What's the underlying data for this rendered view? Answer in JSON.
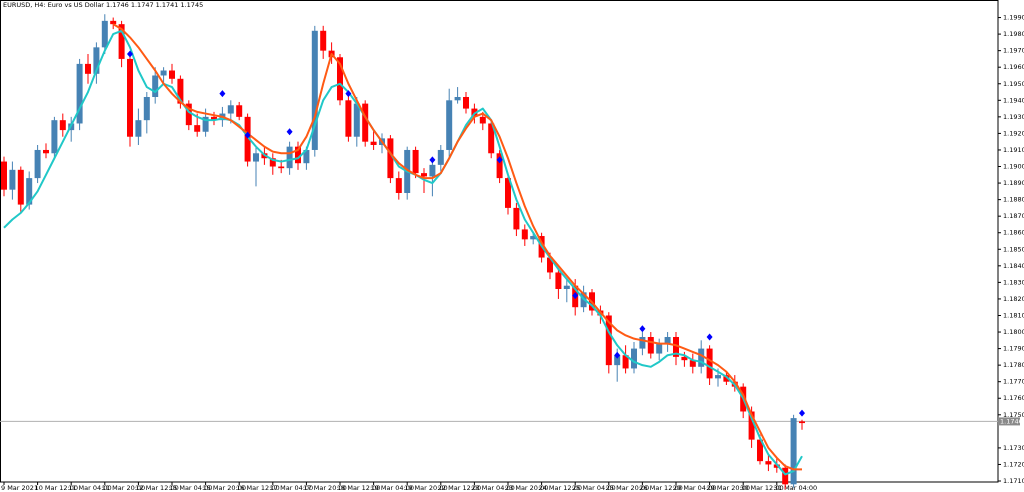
{
  "chart_data": {
    "type": "candlestick",
    "title": "EURUSD, H4:  Euro vs US Dollar  1.1746 1.1747 1.1741 1.1745",
    "categories": [
      "9 Mar 2021",
      null,
      null,
      null,
      "10 Mar 12:00",
      null,
      null,
      null,
      "11 Mar 04:00",
      null,
      null,
      null,
      "11 Mar 20:00",
      null,
      null,
      null,
      "12 Mar 12:00",
      null,
      null,
      null,
      "15 Mar 04:00",
      null,
      null,
      null,
      "15 Mar 20:00",
      null,
      null,
      null,
      "16 Mar 12:00",
      null,
      null,
      null,
      "17 Mar 04:00",
      null,
      null,
      null,
      "17 Mar 20:00",
      null,
      null,
      null,
      "18 Mar 12:00",
      null,
      null,
      null,
      "19 Mar 04:00",
      null,
      null,
      null,
      "19 Mar 20:00",
      null,
      null,
      null,
      "22 Mar 12:00",
      null,
      null,
      null,
      "23 Mar 04:00",
      null,
      null,
      null,
      "23 Mar 20:00",
      null,
      null,
      null,
      "24 Mar 12:00",
      null,
      null,
      null,
      "25 Mar 04:00",
      null,
      null,
      null,
      "25 Mar 20:00",
      null,
      null,
      null,
      "26 Mar 12:00",
      null,
      null,
      null,
      "29 Mar 04:00",
      null,
      null,
      null,
      "29 Mar 20:00",
      null,
      null,
      null,
      "30 Mar 12:00",
      null,
      null,
      null,
      "31 Mar 04:00",
      null,
      null,
      null
    ],
    "open": [
      1.1903,
      1.1886,
      1.1898,
      1.1877,
      1.1893,
      1.191,
      1.1908,
      1.1928,
      1.1922,
      1.1926,
      1.1962,
      1.1956,
      1.1972,
      1.1988,
      1.1986,
      1.1965,
      1.1918,
      1.1928,
      1.1942,
      1.1955,
      1.1958,
      1.1953,
      1.1938,
      1.1925,
      1.1921,
      1.193,
      1.1928,
      1.1932,
      1.1937,
      1.193,
      1.1903,
      1.1908,
      1.1905,
      1.19,
      1.1899,
      1.1912,
      1.1902,
      1.191,
      1.1982,
      1.197,
      1.1966,
      1.194,
      1.1918,
      1.1938,
      1.1915,
      1.1913,
      1.1917,
      1.1893,
      1.1884,
      1.191,
      1.1896,
      1.1894,
      1.1901,
      1.191,
      1.194,
      1.1942,
      1.1935,
      1.193,
      1.1926,
      1.1908,
      1.1893,
      1.1875,
      1.1862,
      1.1856,
      1.1858,
      1.1845,
      1.1836,
      1.1826,
      1.1828,
      1.1815,
      1.1824,
      1.1813,
      1.181,
      1.178,
      1.1786,
      1.1778,
      1.179,
      1.1797,
      1.1787,
      1.1793,
      1.1797,
      1.1785,
      1.1783,
      1.1779,
      1.179,
      1.1772,
      1.1774,
      1.177,
      1.1767,
      1.1752,
      1.1735,
      1.1722,
      1.172,
      1.1718,
      1.1708,
      1.1746
    ],
    "high": [
      1.1906,
      1.1903,
      1.19,
      1.1897,
      1.1913,
      1.1914,
      1.193,
      1.1932,
      1.193,
      1.1965,
      1.1968,
      1.1975,
      1.1992,
      1.199,
      1.1988,
      1.1968,
      1.1935,
      1.1945,
      1.196,
      1.196,
      1.1962,
      1.1955,
      1.194,
      1.1932,
      1.1935,
      1.1933,
      1.1936,
      1.194,
      1.1939,
      1.1932,
      1.1912,
      1.1912,
      1.1908,
      1.1904,
      1.1915,
      1.1915,
      1.1912,
      1.1985,
      1.1985,
      1.1975,
      1.1968,
      1.1943,
      1.1942,
      1.194,
      1.1922,
      1.192,
      1.1919,
      1.1897,
      1.1912,
      1.1912,
      1.1899,
      1.1904,
      1.1913,
      1.1947,
      1.1948,
      1.1945,
      1.1938,
      1.1933,
      1.1928,
      1.191,
      1.1895,
      1.1878,
      1.1865,
      1.186,
      1.186,
      1.1848,
      1.1838,
      1.1832,
      1.1832,
      1.1828,
      1.1826,
      1.1816,
      1.1812,
      1.179,
      1.1792,
      1.1794,
      1.18,
      1.18,
      1.1796,
      1.18,
      1.18,
      1.1788,
      1.1787,
      1.1795,
      1.1792,
      1.1778,
      1.1776,
      1.1774,
      1.1769,
      1.1755,
      1.1738,
      1.1726,
      1.1724,
      1.172,
      1.175,
      1.1747
    ],
    "low": [
      1.1882,
      1.188,
      1.1872,
      1.1874,
      1.189,
      1.1905,
      1.1905,
      1.1918,
      1.1915,
      1.1922,
      1.195,
      1.195,
      1.1968,
      1.1983,
      1.196,
      1.1912,
      1.1913,
      1.192,
      1.1938,
      1.195,
      1.195,
      1.1935,
      1.1922,
      1.1918,
      1.1918,
      1.1925,
      1.1924,
      1.1926,
      1.1928,
      1.19,
      1.1888,
      1.1901,
      1.1895,
      1.1896,
      1.1895,
      1.1898,
      1.1898,
      1.1906,
      1.1965,
      1.1962,
      1.1937,
      1.1915,
      1.1912,
      1.1912,
      1.191,
      1.1908,
      1.189,
      1.188,
      1.188,
      1.1893,
      1.1884,
      1.1882,
      1.1897,
      1.1906,
      1.1938,
      1.1932,
      1.1926,
      1.1922,
      1.1905,
      1.189,
      1.1871,
      1.1858,
      1.1852,
      1.1853,
      1.1842,
      1.1832,
      1.182,
      1.1818,
      1.181,
      1.1812,
      1.181,
      1.1805,
      1.1775,
      1.177,
      1.1775,
      1.1775,
      1.1786,
      1.1784,
      1.1783,
      1.1788,
      1.178,
      1.1779,
      1.1775,
      1.1775,
      1.1768,
      1.1767,
      1.1768,
      1.1764,
      1.1748,
      1.173,
      1.172,
      1.1716,
      1.1715,
      1.1705,
      1.1706,
      1.1741
    ],
    "close": [
      1.1886,
      1.1898,
      1.1877,
      1.1893,
      1.191,
      1.1908,
      1.1928,
      1.1922,
      1.1926,
      1.1962,
      1.1956,
      1.1972,
      1.1988,
      1.1986,
      1.1965,
      1.1918,
      1.1928,
      1.1942,
      1.1955,
      1.1958,
      1.1953,
      1.1938,
      1.1925,
      1.1921,
      1.193,
      1.1928,
      1.1932,
      1.1937,
      1.193,
      1.1903,
      1.1908,
      1.1905,
      1.19,
      1.1899,
      1.1912,
      1.1902,
      1.191,
      1.1982,
      1.197,
      1.1966,
      1.194,
      1.1918,
      1.1938,
      1.1915,
      1.1913,
      1.1917,
      1.1893,
      1.1884,
      1.191,
      1.1896,
      1.1894,
      1.1901,
      1.191,
      1.194,
      1.1942,
      1.1935,
      1.193,
      1.1926,
      1.1908,
      1.1893,
      1.1875,
      1.1862,
      1.1856,
      1.1858,
      1.1845,
      1.1836,
      1.1826,
      1.1828,
      1.1815,
      1.1824,
      1.1813,
      1.181,
      1.178,
      1.1786,
      1.1778,
      1.179,
      1.1797,
      1.1787,
      1.1793,
      1.1797,
      1.1785,
      1.1783,
      1.1779,
      1.179,
      1.1772,
      1.1774,
      1.177,
      1.1767,
      1.1752,
      1.1735,
      1.1722,
      1.172,
      1.1718,
      1.1708,
      1.1748,
      1.1745
    ],
    "up_color": "#4682b4",
    "down_color": "#ff0000",
    "ma_fast": {
      "color": "#20c8c8",
      "values": [
        1.1863,
        1.1868,
        1.1872,
        1.1878,
        1.1885,
        1.1895,
        1.1905,
        1.1915,
        1.1925,
        1.1935,
        1.1945,
        1.1958,
        1.197,
        1.198,
        1.1982,
        1.1972,
        1.1958,
        1.1948,
        1.1945,
        1.195,
        1.1948,
        1.194,
        1.1933,
        1.193,
        1.1928,
        1.1928,
        1.1929,
        1.1928,
        1.1925,
        1.1918,
        1.1912,
        1.1907,
        1.1904,
        1.1903,
        1.1904,
        1.1905,
        1.191,
        1.1925,
        1.194,
        1.1948,
        1.195,
        1.1945,
        1.1938,
        1.193,
        1.1922,
        1.1915,
        1.1908,
        1.19,
        1.1897,
        1.1895,
        1.1892,
        1.189,
        1.1896,
        1.1905,
        1.1915,
        1.1925,
        1.1932,
        1.1935,
        1.1928,
        1.1912,
        1.1895,
        1.188,
        1.1868,
        1.186,
        1.1852,
        1.1845,
        1.1838,
        1.1832,
        1.1826,
        1.182,
        1.1816,
        1.181,
        1.18,
        1.1792,
        1.1786,
        1.1782,
        1.178,
        1.1779,
        1.1782,
        1.1786,
        1.1787,
        1.1786,
        1.1783,
        1.1782,
        1.1779,
        1.1776,
        1.1773,
        1.1768,
        1.176,
        1.1748,
        1.1736,
        1.1726,
        1.172,
        1.1714,
        1.1716,
        1.1725
      ]
    },
    "ma_slow": {
      "color": "#ff5a14",
      "values": [
        null,
        null,
        null,
        null,
        null,
        null,
        null,
        null,
        null,
        null,
        null,
        null,
        null,
        1.1986,
        1.1983,
        1.1978,
        1.1972,
        1.1965,
        1.1958,
        1.195,
        1.1944,
        1.1939,
        1.1935,
        1.1933,
        1.1932,
        1.1931,
        1.193,
        1.1928,
        1.1924,
        1.192,
        1.1916,
        1.1912,
        1.1909,
        1.1908,
        1.1908,
        1.191,
        1.1918,
        1.193,
        1.195,
        1.1968,
        1.1962,
        1.195,
        1.194,
        1.193,
        1.1922,
        1.1915,
        1.1908,
        1.1902,
        1.1898,
        1.1895,
        1.1893,
        1.1893,
        1.1896,
        1.1905,
        1.1915,
        1.1923,
        1.193,
        1.1932,
        1.1928,
        1.1918,
        1.1905,
        1.189,
        1.1876,
        1.1864,
        1.1854,
        1.1846,
        1.184,
        1.1834,
        1.1828,
        1.1823,
        1.1818,
        1.1812,
        1.1806,
        1.1801,
        1.1798,
        1.1796,
        1.1795,
        1.1794,
        1.1793,
        1.1793,
        1.1792,
        1.179,
        1.1788,
        1.1786,
        1.1783,
        1.178,
        1.1776,
        1.177,
        1.1762,
        1.175,
        1.174,
        1.173,
        1.1724,
        1.1719,
        1.1717,
        1.1717
      ]
    },
    "fractals": {
      "color": "#0000ff",
      "values": [
        null,
        null,
        null,
        null,
        null,
        null,
        null,
        null,
        null,
        null,
        null,
        null,
        null,
        null,
        null,
        1.1968,
        null,
        null,
        null,
        null,
        null,
        null,
        null,
        null,
        null,
        null,
        1.1944,
        null,
        null,
        1.1919,
        null,
        null,
        null,
        null,
        1.1921,
        null,
        null,
        null,
        null,
        null,
        null,
        1.1944,
        null,
        null,
        null,
        null,
        null,
        null,
        null,
        null,
        null,
        1.1904,
        null,
        null,
        null,
        null,
        null,
        null,
        null,
        1.1904,
        null,
        null,
        null,
        null,
        null,
        null,
        null,
        null,
        1.1822,
        null,
        null,
        null,
        null,
        1.1786,
        null,
        null,
        1.1802,
        null,
        null,
        null,
        null,
        null,
        null,
        null,
        1.1797,
        null,
        null,
        null,
        null,
        null,
        null,
        null,
        null,
        null,
        null,
        1.1751
      ]
    },
    "bid": 1.1746,
    "ylim": [
      1.17094,
      1.20006
    ],
    "yticks": [
      {
        "value": 1.199,
        "label": "1.1990"
      },
      {
        "value": 1.198,
        "label": "1.1980"
      },
      {
        "value": 1.197,
        "label": "1.1970"
      },
      {
        "value": 1.196,
        "label": "1.1960"
      },
      {
        "value": 1.195,
        "label": "1.1950"
      },
      {
        "value": 1.194,
        "label": "1.1940"
      },
      {
        "value": 1.193,
        "label": "1.1930"
      },
      {
        "value": 1.192,
        "label": "1.1920"
      },
      {
        "value": 1.191,
        "label": "1.1910"
      },
      {
        "value": 1.19,
        "label": "1.1900"
      },
      {
        "value": 1.189,
        "label": "1.1890"
      },
      {
        "value": 1.188,
        "label": "1.1880"
      },
      {
        "value": 1.187,
        "label": "1.1870"
      },
      {
        "value": 1.186,
        "label": "1.1860"
      },
      {
        "value": 1.185,
        "label": "1.1850"
      },
      {
        "value": 1.184,
        "label": "1.1840"
      },
      {
        "value": 1.183,
        "label": "1.1830"
      },
      {
        "value": 1.182,
        "label": "1.1820"
      },
      {
        "value": 1.181,
        "label": "1.1810"
      },
      {
        "value": 1.18,
        "label": "1.1800"
      },
      {
        "value": 1.179,
        "label": "1.1790"
      },
      {
        "value": 1.178,
        "label": "1.1780"
      },
      {
        "value": 1.177,
        "label": "1.1770"
      },
      {
        "value": 1.176,
        "label": "1.1760"
      },
      {
        "value": 1.175,
        "label": "1.1750"
      },
      {
        "value": 1.173,
        "label": "1.1730"
      },
      {
        "value": 1.172,
        "label": "1.1720"
      },
      {
        "value": 1.171,
        "label": "1.1710"
      }
    ]
  }
}
